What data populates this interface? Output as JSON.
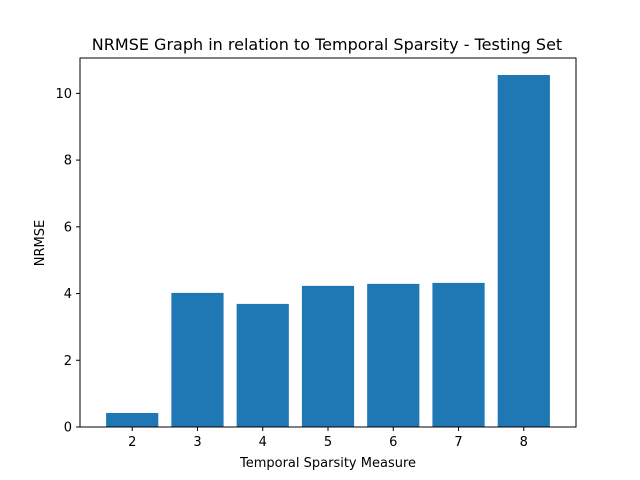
{
  "chart_data": {
    "type": "bar",
    "title": "NRMSE Graph in relation to Temporal Sparsity - Testing Set",
    "xlabel": "Temporal Sparsity Measure",
    "ylabel": "NRMSE",
    "categories": [
      "2",
      "3",
      "4",
      "5",
      "6",
      "7",
      "8"
    ],
    "values": [
      0.42,
      4.02,
      3.69,
      4.23,
      4.29,
      4.32,
      10.55
    ],
    "ylim": [
      0,
      11.06
    ],
    "yticks": [
      0,
      2,
      4,
      6,
      8,
      10
    ],
    "grid": false,
    "bar_color": "#1f77b4"
  }
}
